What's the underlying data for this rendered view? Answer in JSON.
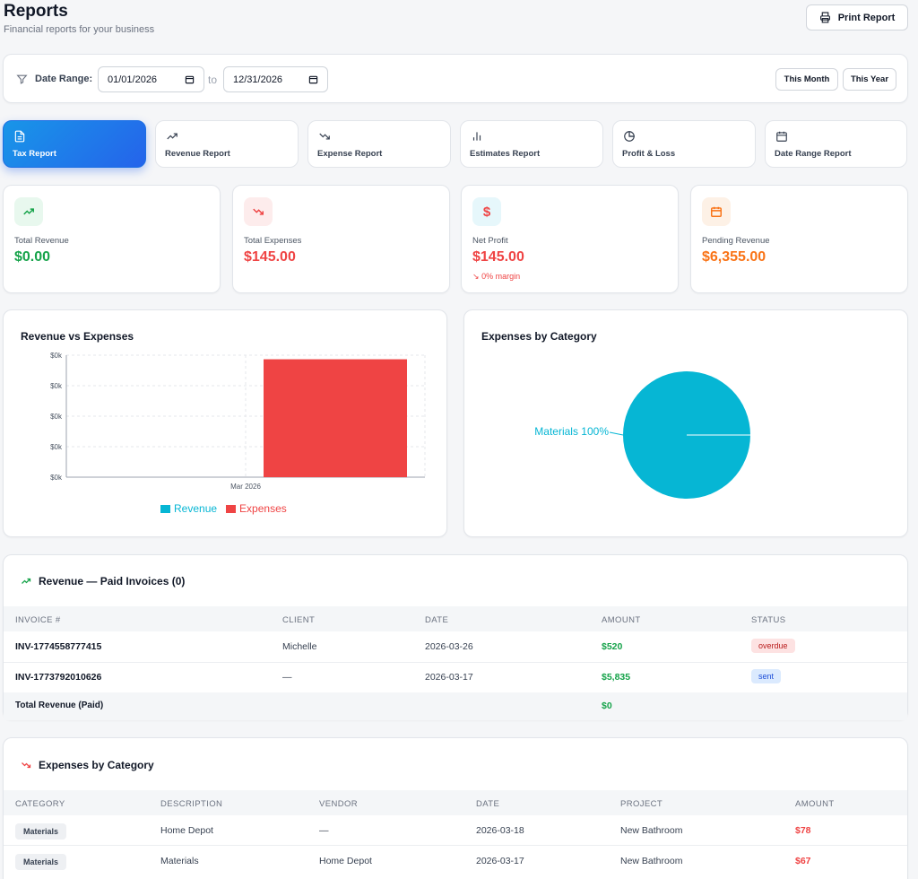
{
  "header": {
    "title": "Reports",
    "subtitle": "Financial reports for your business",
    "print_label": "Print Report"
  },
  "filter": {
    "label": "Date Range:",
    "start": "01/01/2026",
    "to": "to",
    "end": "12/31/2026",
    "this_month": "This Month",
    "this_year": "This Year"
  },
  "tabs": [
    {
      "label": "Tax Report",
      "icon": "document-icon"
    },
    {
      "label": "Revenue Report",
      "icon": "trending-up-icon"
    },
    {
      "label": "Expense Report",
      "icon": "trending-down-icon"
    },
    {
      "label": "Estimates Report",
      "icon": "bar-chart-icon"
    },
    {
      "label": "Profit & Loss",
      "icon": "pie-chart-icon"
    },
    {
      "label": "Date Range Report",
      "icon": "calendar-icon"
    }
  ],
  "stats": [
    {
      "label": "Total Revenue",
      "value": "$0.00",
      "color": "#16a34a"
    },
    {
      "label": "Total Expenses",
      "value": "$145.00",
      "color": "#ef4444"
    },
    {
      "label": "Net Profit",
      "value": "$145.00",
      "color": "#ef4444",
      "margin": "0% margin"
    },
    {
      "label": "Pending Revenue",
      "value": "$6,355.00",
      "color": "#f97316"
    }
  ],
  "charts": {
    "bar_title": "Revenue vs Expenses",
    "pie_title": "Expenses by Category"
  },
  "chart_data": [
    {
      "type": "bar",
      "title": "Revenue vs Expenses",
      "categories": [
        "Mar 2026"
      ],
      "y_tick_labels": [
        "$0k",
        "$0k",
        "$0k",
        "$0k",
        "$0k"
      ],
      "series": [
        {
          "name": "Revenue",
          "values": [
            0
          ],
          "color": "#06b6d4"
        },
        {
          "name": "Expenses",
          "values": [
            145
          ],
          "color": "#ef4444"
        }
      ],
      "ylim": [
        0,
        150
      ],
      "grid": true,
      "legend": "bottom"
    },
    {
      "type": "pie",
      "title": "Expenses by Category",
      "slices": [
        {
          "label": "Materials",
          "value": 100,
          "display": "Materials 100%",
          "color": "#06b6d4"
        }
      ]
    }
  ],
  "revenue_table": {
    "title": "Revenue — Paid Invoices (0)",
    "headers": [
      "INVOICE #",
      "CLIENT",
      "DATE",
      "AMOUNT",
      "STATUS"
    ],
    "rows": [
      {
        "invoice": "INV-1774558777415",
        "client": "Michelle",
        "date": "2026-03-26",
        "amount": "$520",
        "status": "overdue"
      },
      {
        "invoice": "INV-1773792010626",
        "client": "—",
        "date": "2026-03-17",
        "amount": "$5,835",
        "status": "sent"
      }
    ],
    "total_label": "Total Revenue (Paid)",
    "total_value": "$0"
  },
  "expense_table": {
    "title": "Expenses by Category",
    "headers": [
      "CATEGORY",
      "DESCRIPTION",
      "VENDOR",
      "DATE",
      "PROJECT",
      "AMOUNT"
    ],
    "rows": [
      {
        "category": "Materials",
        "description": "Home Depot",
        "vendor": "—",
        "date": "2026-03-18",
        "project": "New Bathroom",
        "amount": "$78"
      },
      {
        "category": "Materials",
        "description": "Materials",
        "vendor": "Home Depot",
        "date": "2026-03-17",
        "project": "New Bathroom",
        "amount": "$67"
      }
    ]
  }
}
